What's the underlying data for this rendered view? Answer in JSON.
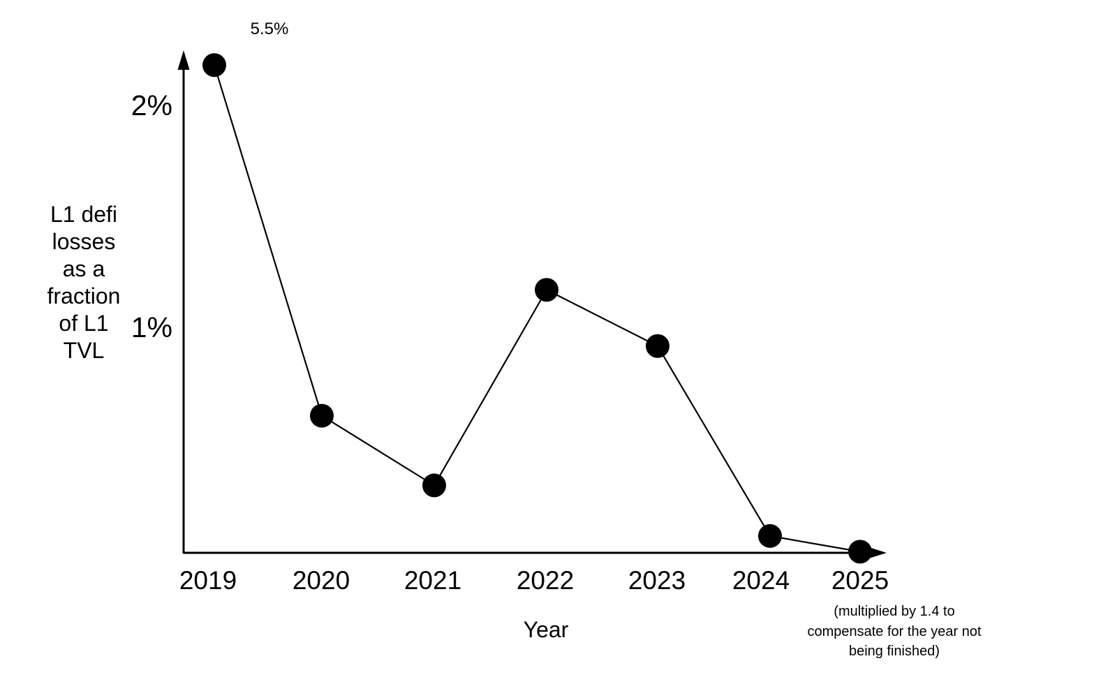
{
  "colors": {
    "background": "#ffffff",
    "ink": "#000000"
  },
  "chart_data": {
    "type": "line",
    "title": "",
    "xlabel": "Year",
    "ylabel": "L1 defi losses as a fraction of L1 TVL",
    "ylabel_lines": [
      "L1 defi",
      "losses",
      "as a",
      "fraction",
      "of L1",
      "TVL"
    ],
    "x": [
      "2019",
      "2020",
      "2021",
      "2022",
      "2023",
      "2024",
      "2025"
    ],
    "y_tick_labels": [
      "2%",
      "1%"
    ],
    "y_tick_pct": [
      2,
      1
    ],
    "ylim_pct": [
      0,
      2.25
    ],
    "grid": false,
    "legend": false,
    "line_color": "#000000",
    "marker_color": "#000000",
    "marker": "filled-circle",
    "points": [
      {
        "year": "2019",
        "value_pct": 5.5,
        "clipped_at_top": true,
        "plotted_pct": 2.17,
        "annotation": "5.5%"
      },
      {
        "year": "2020",
        "value_pct": 0.61
      },
      {
        "year": "2021",
        "value_pct": 0.3
      },
      {
        "year": "2022",
        "value_pct": 1.17
      },
      {
        "year": "2023",
        "value_pct": 0.92
      },
      {
        "year": "2024",
        "value_pct": 0.08,
        "plotted_pct": 0.075
      },
      {
        "year": "2025",
        "value_pct": 0.01,
        "plotted_pct": 0.005,
        "note": "(multiplied by 1.4 to compensate for the year not being finished)"
      }
    ],
    "annotations": {
      "peak_label": "5.5%",
      "note_2025": "(multiplied by 1.4 to compensate for the year not being finished)",
      "note_2025_lines": [
        "(multiplied by 1.4 to",
        "compensate for the year not",
        "being finished)"
      ]
    }
  }
}
